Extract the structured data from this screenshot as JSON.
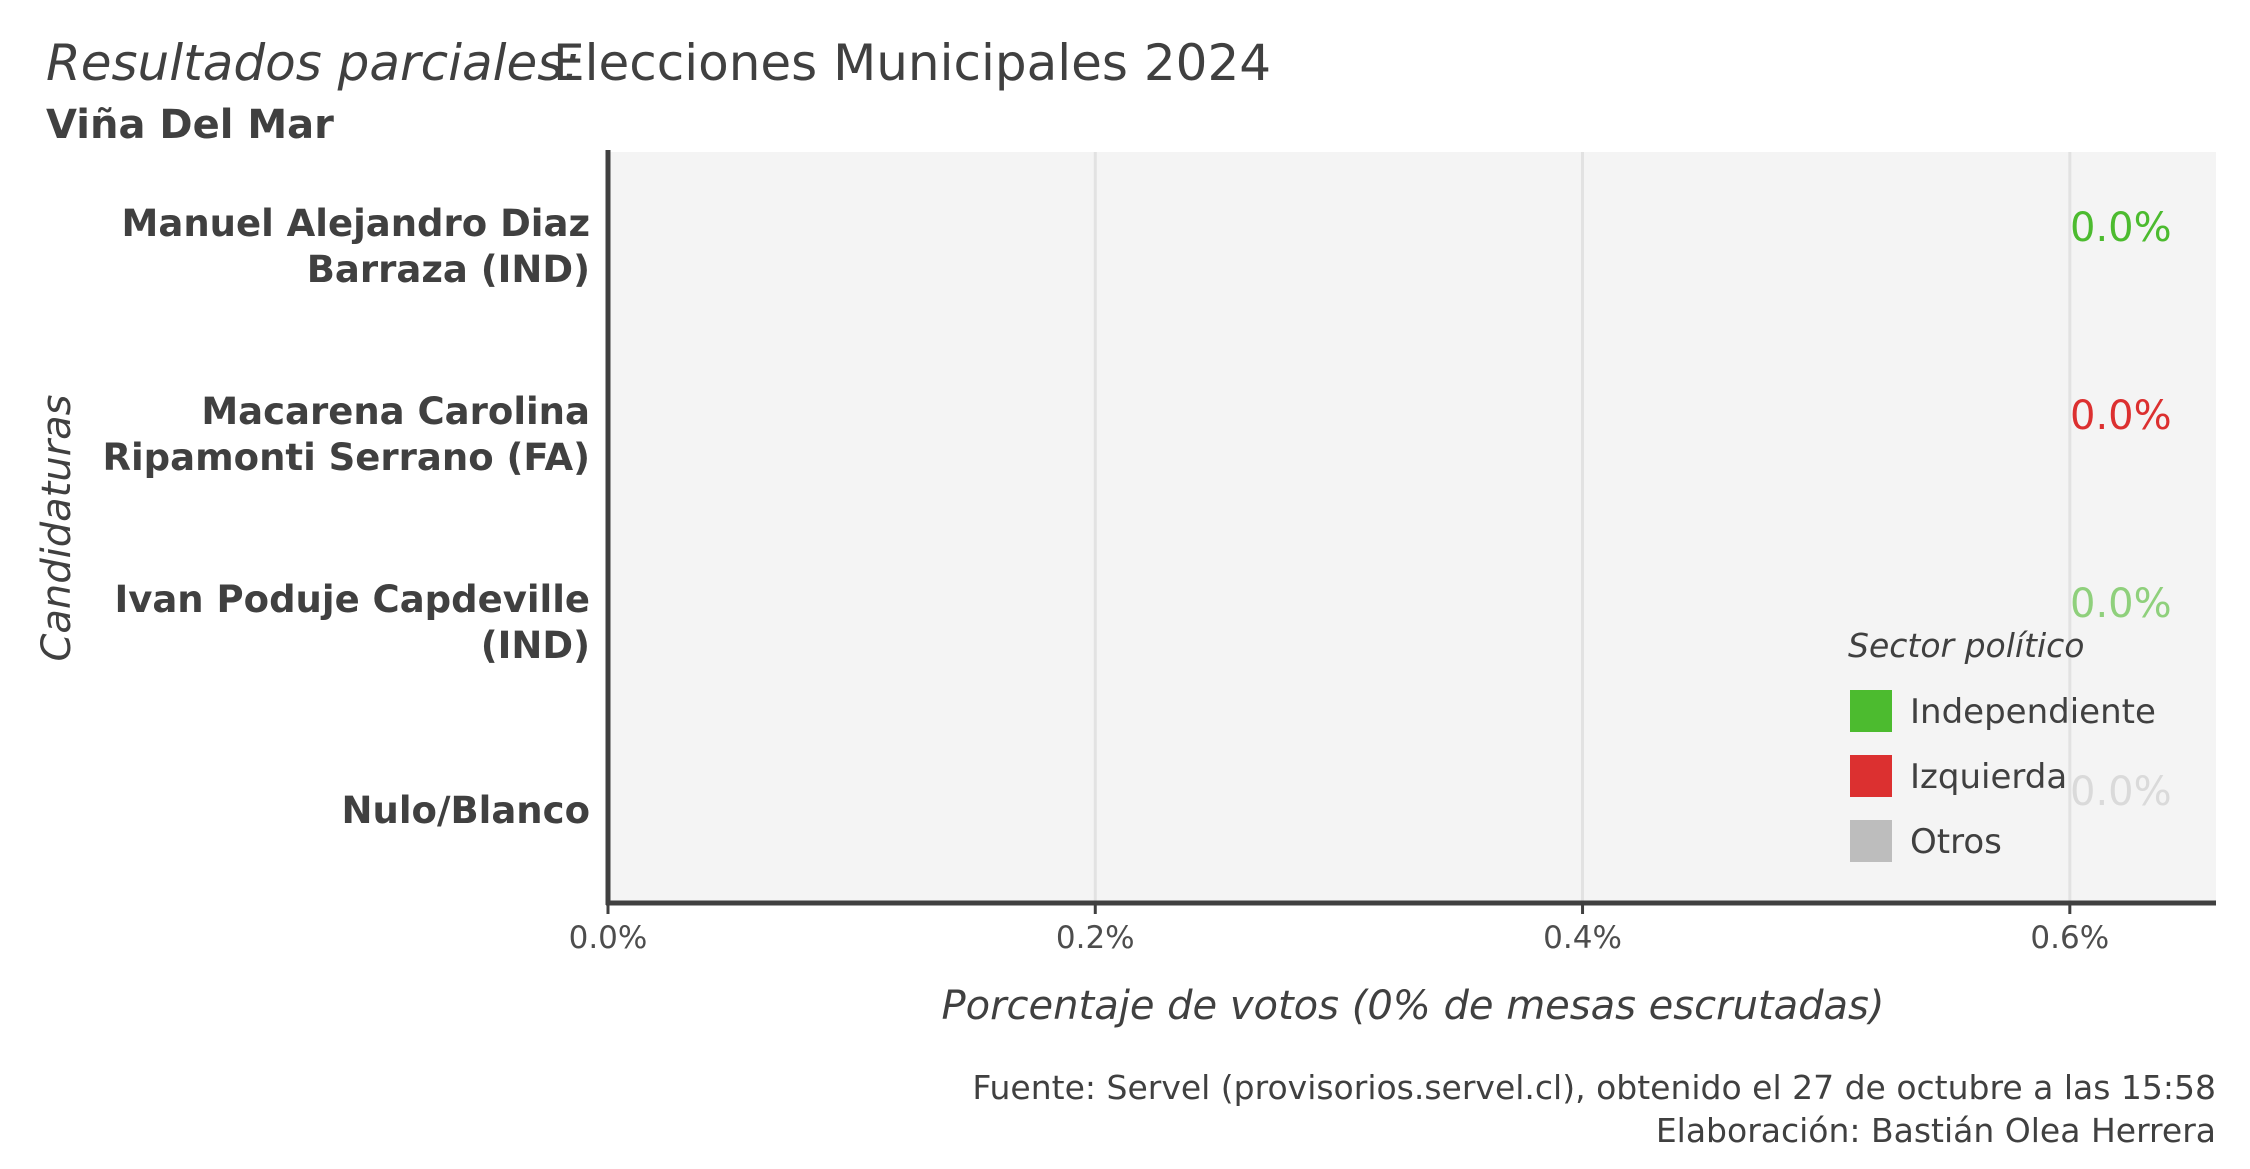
{
  "chart_data": {
    "type": "bar",
    "orientation": "horizontal",
    "title_prefix": "Resultados parciales:",
    "title": "Elecciones Municipales 2024",
    "subtitle": "Viña Del Mar",
    "xlabel": "Porcentaje de votos (0% de mesas escrutadas)",
    "ylabel": "Candidaturas",
    "xlim": [
      0,
      0.0066
    ],
    "xticks": [
      0,
      0.002,
      0.004,
      0.006
    ],
    "xtick_labels": [
      "0.0%",
      "0.2%",
      "0.4%",
      "0.6%"
    ],
    "grid": true,
    "categories": [
      [
        "Manuel Alejandro Diaz",
        "Barraza (IND)"
      ],
      [
        "Macarena Carolina",
        "Ripamonti Serrano (FA)"
      ],
      [
        "Ivan Poduje Capdeville",
        "(IND)"
      ],
      [
        "Nulo/Blanco"
      ]
    ],
    "values": [
      0,
      0,
      0,
      0
    ],
    "sectors": [
      "Independiente",
      "Izquierda",
      "Independiente",
      "Otros"
    ],
    "data_labels": [
      "0.0%",
      "0.0%",
      "0.0%",
      "0.0%"
    ],
    "label_colors": [
      "#4cbb2f",
      "#dc3030",
      "#8fd07c",
      "#dadada"
    ],
    "legend": {
      "title": "Sector político",
      "position": "bottom-right",
      "items": [
        {
          "name": "Independiente",
          "color": "#4cbb2f"
        },
        {
          "name": "Izquierda",
          "color": "#dc3030"
        },
        {
          "name": "Otros",
          "color": "#bdbdbd"
        }
      ]
    },
    "caption": [
      "Fuente: Servel (provisorios.servel.cl), obtenido el 27 de octubre a las 15:58",
      "Elaboración: Bastián Olea Herrera"
    ],
    "colors": {
      "panel_bg": "#f4f4f4",
      "grid": "#e2e2e2",
      "axis": "#404040",
      "text": "#404040"
    }
  }
}
